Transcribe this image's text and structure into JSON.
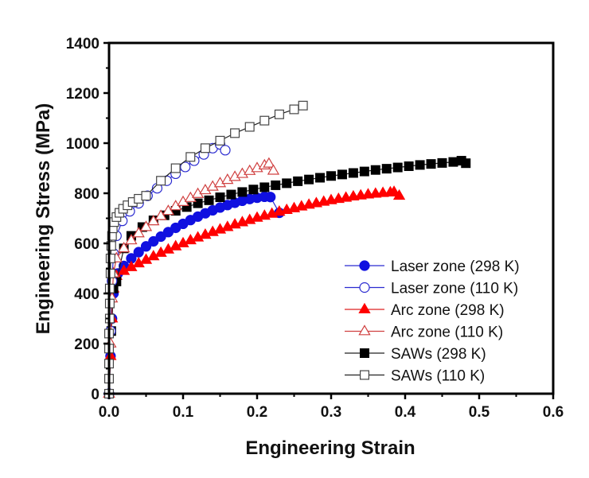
{
  "chart_data": {
    "type": "line",
    "title": "",
    "xlabel": "Engineering Strain",
    "ylabel": "Engineering Stress (MPa)",
    "xlim": [
      0.0,
      0.6
    ],
    "ylim": [
      0,
      1400
    ],
    "xticks": [
      0.0,
      0.1,
      0.2,
      0.3,
      0.4,
      0.5,
      0.6
    ],
    "xtick_labels": [
      "0.0",
      "0.1",
      "0.2",
      "0.3",
      "0.4",
      "0.5",
      "0.6"
    ],
    "yticks": [
      0,
      200,
      400,
      600,
      800,
      1000,
      1200,
      1400
    ],
    "ytick_labels": [
      "0",
      "200",
      "400",
      "600",
      "800",
      "1000",
      "1200",
      "1400"
    ],
    "grid": false,
    "legend_position": "bottom-right",
    "series": [
      {
        "name": "Laser zone (298 K)",
        "color": "#1010e0",
        "line_color": "#2a2ad0",
        "marker": "circle",
        "filled": true,
        "x": [
          0.0,
          0.002,
          0.004,
          0.006,
          0.008,
          0.012,
          0.02,
          0.03,
          0.04,
          0.05,
          0.06,
          0.07,
          0.08,
          0.09,
          0.1,
          0.11,
          0.12,
          0.13,
          0.14,
          0.15,
          0.16,
          0.17,
          0.18,
          0.19,
          0.2,
          0.21,
          0.218,
          0.23
        ],
        "y": [
          0,
          150,
          300,
          400,
          450,
          480,
          510,
          540,
          565,
          588,
          608,
          627,
          645,
          662,
          678,
          693,
          707,
          720,
          732,
          743,
          753,
          762,
          770,
          777,
          782,
          786,
          785,
          722
        ]
      },
      {
        "name": "Laser zone (110 K)",
        "color": "#2a2ad0",
        "line_color": "#2a2ad0",
        "marker": "circle",
        "filled": false,
        "x": [
          0.0,
          0.002,
          0.004,
          0.006,
          0.01,
          0.018,
          0.028,
          0.04,
          0.052,
          0.065,
          0.078,
          0.09,
          0.103,
          0.115,
          0.128,
          0.14,
          0.15,
          0.157
        ],
        "y": [
          0,
          250,
          450,
          560,
          630,
          690,
          728,
          760,
          790,
          820,
          850,
          878,
          905,
          930,
          955,
          980,
          995,
          972
        ]
      },
      {
        "name": "Arc zone (298 K)",
        "color": "#ff0000",
        "line_color": "#dd2222",
        "marker": "triangle",
        "filled": true,
        "x": [
          0.0,
          0.002,
          0.004,
          0.006,
          0.01,
          0.02,
          0.03,
          0.04,
          0.05,
          0.06,
          0.07,
          0.08,
          0.09,
          0.1,
          0.11,
          0.12,
          0.13,
          0.14,
          0.15,
          0.16,
          0.17,
          0.18,
          0.19,
          0.2,
          0.21,
          0.22,
          0.23,
          0.24,
          0.25,
          0.26,
          0.27,
          0.28,
          0.29,
          0.3,
          0.31,
          0.32,
          0.33,
          0.34,
          0.35,
          0.36,
          0.37,
          0.38,
          0.385,
          0.392
        ],
        "y": [
          0,
          150,
          300,
          420,
          470,
          490,
          505,
          520,
          534,
          548,
          562,
          575,
          588,
          600,
          612,
          623,
          634,
          645,
          655,
          665,
          675,
          684,
          693,
          702,
          710,
          718,
          726,
          733,
          740,
          747,
          754,
          760,
          766,
          772,
          777,
          782,
          787,
          791,
          795,
          798,
          801,
          803,
          805,
          790
        ]
      },
      {
        "name": "Arc zone (110 K)",
        "color": "#d04040",
        "line_color": "#d04040",
        "marker": "triangle",
        "filled": false,
        "x": [
          0.0,
          0.002,
          0.004,
          0.006,
          0.01,
          0.02,
          0.03,
          0.04,
          0.05,
          0.06,
          0.07,
          0.08,
          0.09,
          0.1,
          0.11,
          0.12,
          0.13,
          0.14,
          0.15,
          0.16,
          0.17,
          0.18,
          0.19,
          0.2,
          0.21,
          0.216,
          0.222
        ],
        "y": [
          0,
          200,
          380,
          480,
          540,
          580,
          612,
          640,
          665,
          688,
          709,
          729,
          748,
          765,
          781,
          797,
          812,
          826,
          840,
          853,
          865,
          877,
          889,
          900,
          911,
          918,
          890
        ]
      },
      {
        "name": "SAWs (298 K)",
        "color": "#000000",
        "line_color": "#222222",
        "marker": "square",
        "filled": true,
        "x": [
          0.0,
          0.003,
          0.006,
          0.01,
          0.02,
          0.03,
          0.045,
          0.06,
          0.075,
          0.09,
          0.105,
          0.12,
          0.135,
          0.15,
          0.165,
          0.18,
          0.195,
          0.21,
          0.225,
          0.24,
          0.255,
          0.27,
          0.285,
          0.3,
          0.315,
          0.33,
          0.345,
          0.36,
          0.375,
          0.39,
          0.405,
          0.42,
          0.435,
          0.45,
          0.465,
          0.476,
          0.482
        ],
        "y": [
          0,
          250,
          420,
          448,
          580,
          630,
          665,
          692,
          712,
          730,
          745,
          760,
          772,
          784,
          795,
          805,
          815,
          824,
          832,
          840,
          848,
          855,
          862,
          869,
          875,
          881,
          887,
          893,
          898,
          903,
          908,
          913,
          917,
          921,
          925,
          930,
          920
        ]
      },
      {
        "name": "SAWs (110 K)",
        "color": "#444444",
        "line_color": "#222222",
        "marker": "square",
        "filled": false,
        "x": [
          0.0,
          0.0,
          0.0,
          0.0,
          0.0,
          0.001,
          0.001,
          0.001,
          0.002,
          0.002,
          0.003,
          0.004,
          0.005,
          0.007,
          0.01,
          0.014,
          0.019,
          0.025,
          0.032,
          0.04,
          0.05,
          0.07,
          0.09,
          0.11,
          0.13,
          0.15,
          0.17,
          0.19,
          0.21,
          0.23,
          0.25,
          0.262
        ],
        "y": [
          0,
          60,
          120,
          180,
          240,
          300,
          360,
          420,
          480,
          540,
          590,
          630,
          660,
          685,
          705,
          722,
          738,
          752,
          765,
          778,
          790,
          850,
          900,
          945,
          980,
          1010,
          1040,
          1065,
          1090,
          1115,
          1135,
          1150
        ]
      }
    ]
  }
}
